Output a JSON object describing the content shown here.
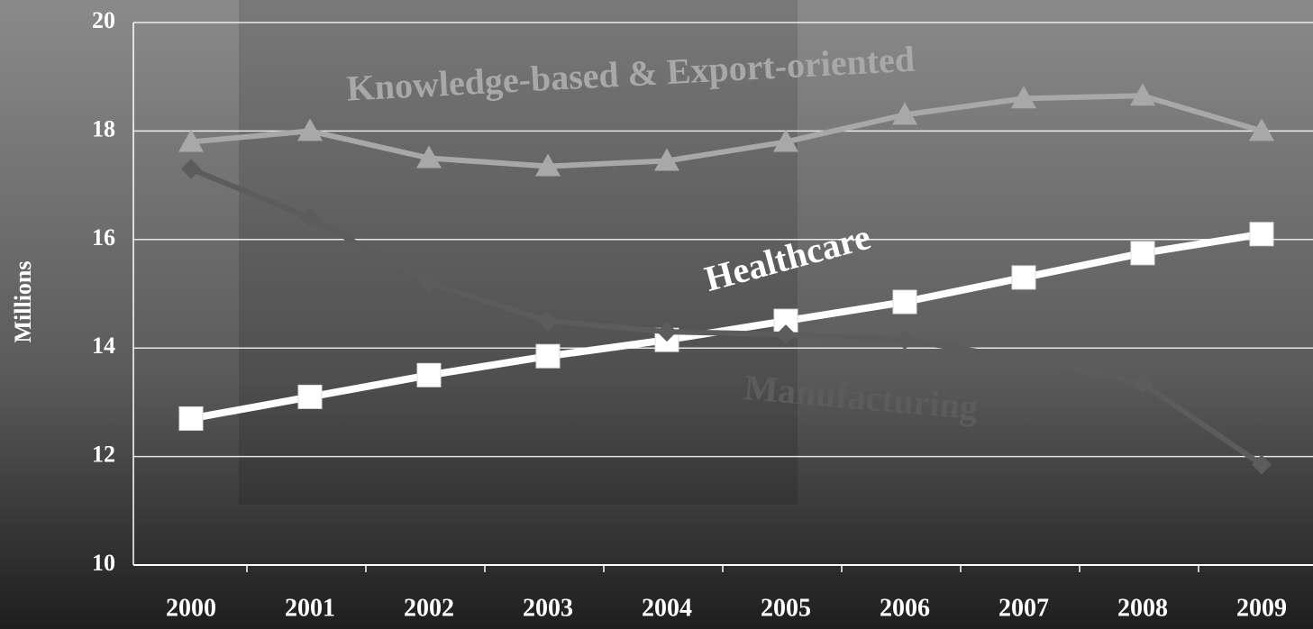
{
  "chart_data": {
    "type": "line",
    "categories": [
      "2000",
      "2001",
      "2002",
      "2003",
      "2004",
      "2005",
      "2006",
      "2007",
      "2008",
      "2009"
    ],
    "series": [
      {
        "name": "Knowledge-based & Export-oriented",
        "color": "#a8a8a8",
        "marker": "triangle",
        "values": [
          17.8,
          18.0,
          17.5,
          17.35,
          17.45,
          17.8,
          18.3,
          18.6,
          18.65,
          18.0
        ]
      },
      {
        "name": "Healthcare",
        "color": "#ffffff",
        "marker": "square",
        "values": [
          12.7,
          13.1,
          13.5,
          13.85,
          14.15,
          14.5,
          14.85,
          15.3,
          15.75,
          16.1
        ]
      },
      {
        "name": "Manufacturing",
        "color": "#5c5c5c",
        "marker": "diamond",
        "values": [
          17.3,
          16.4,
          15.2,
          14.5,
          14.3,
          14.25,
          14.15,
          13.8,
          13.35,
          11.85
        ]
      }
    ],
    "ylabel": "Millions",
    "ylim": [
      10,
      20
    ],
    "yticks": [
      10,
      12,
      14,
      16,
      18,
      20
    ],
    "grid": true
  }
}
